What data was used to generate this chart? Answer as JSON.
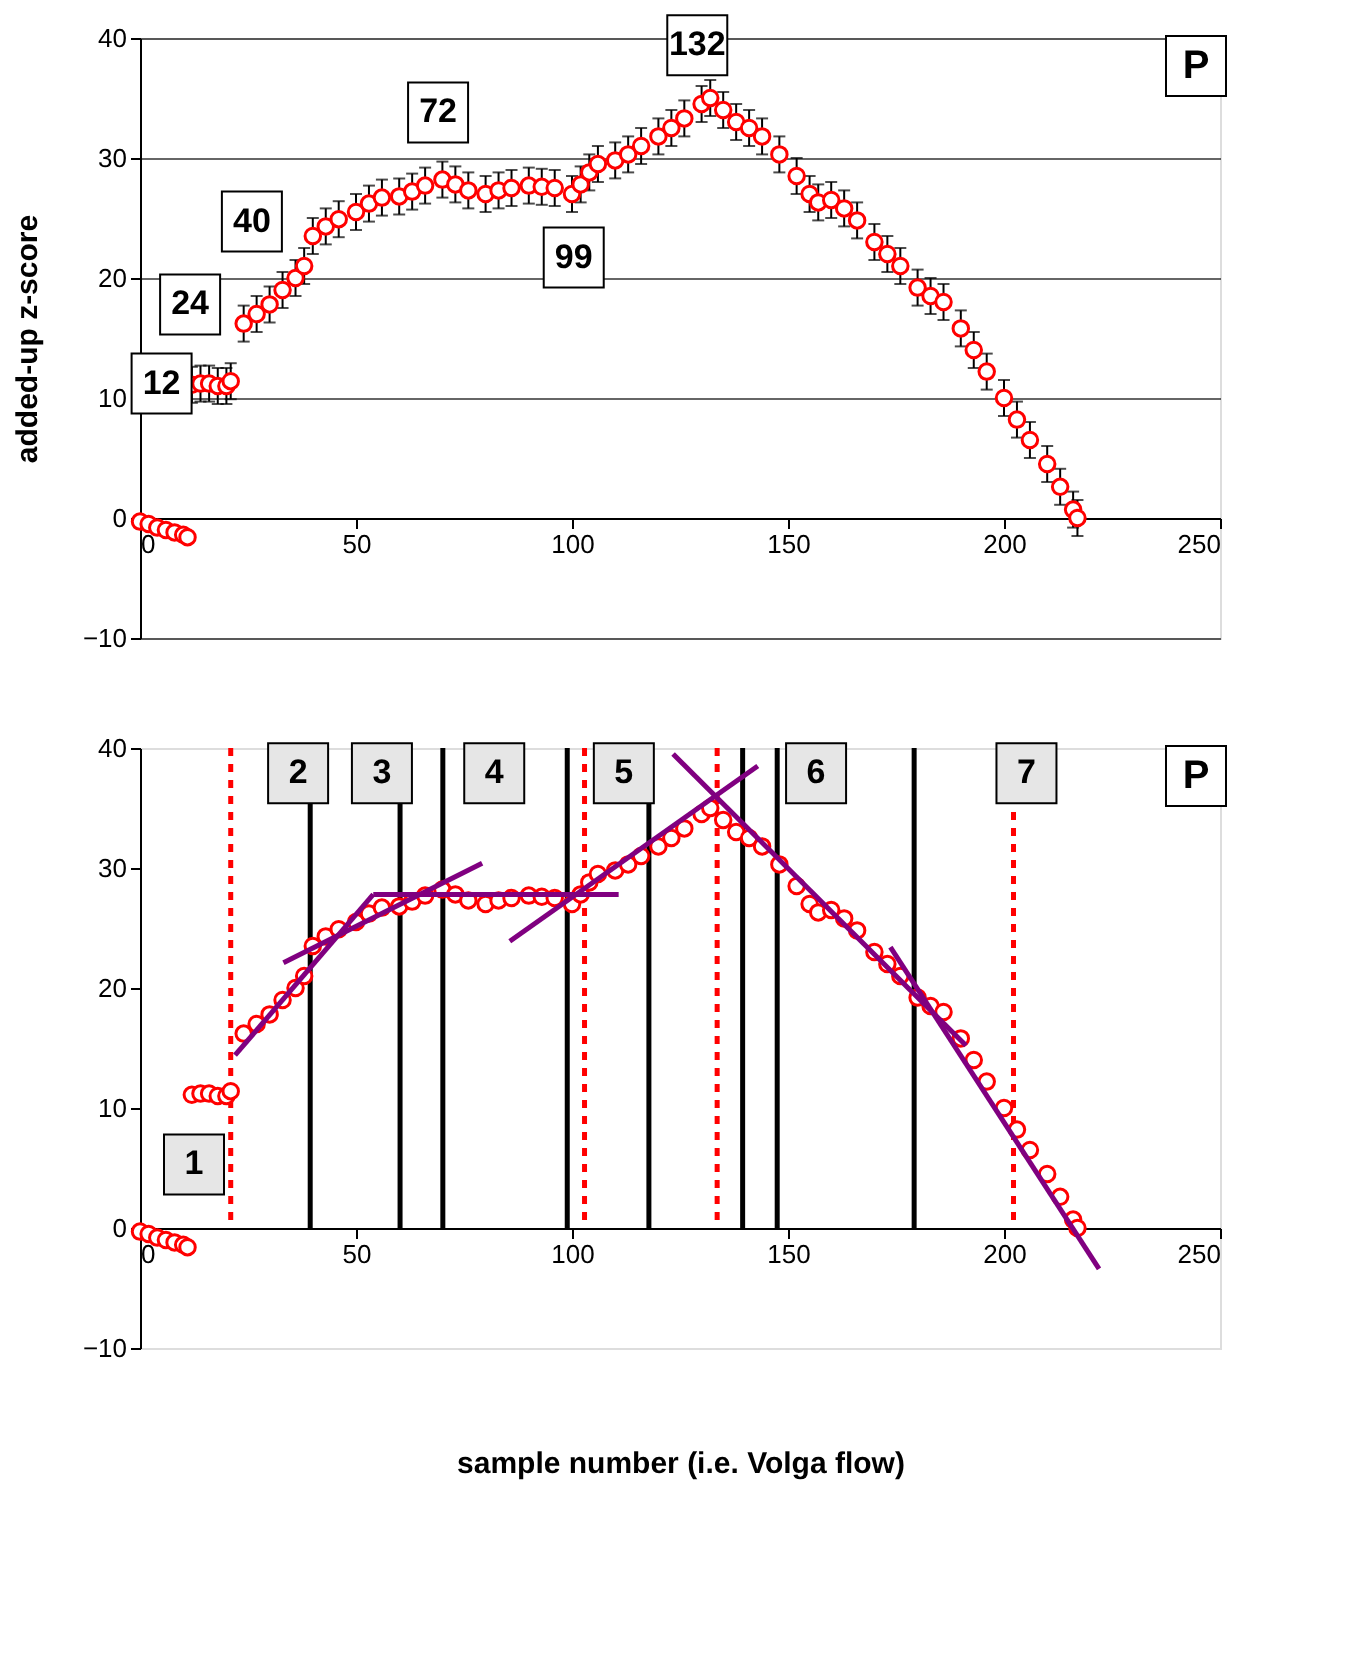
{
  "chart_data": [
    {
      "type": "scatter",
      "ylabel": "added-up z-score",
      "xlim": [
        0,
        250
      ],
      "xticks": [
        0,
        50,
        100,
        150,
        200,
        250
      ],
      "ylim": [
        -10,
        40
      ],
      "yticks": [
        -10,
        0,
        10,
        20,
        30,
        40
      ],
      "grid": "y",
      "series": [
        {
          "color": "#ff0000",
          "marker": "circle",
          "x": [
            0,
            2,
            4,
            6,
            8,
            10,
            11,
            12,
            14,
            16,
            18,
            20,
            21,
            24,
            27,
            30,
            33,
            36,
            38,
            40,
            43,
            46,
            50,
            53,
            56,
            60,
            63,
            66,
            70,
            73,
            76,
            80,
            83,
            86,
            90,
            93,
            96,
            100,
            102,
            104,
            106,
            110,
            113,
            116,
            120,
            123,
            126,
            130,
            132,
            135,
            138,
            141,
            144,
            148,
            152,
            155,
            157,
            160,
            163,
            166,
            170,
            173,
            176,
            180,
            183,
            186,
            190,
            193,
            196,
            200,
            203,
            206,
            210,
            213,
            216,
            217
          ],
          "values": [
            -0.3,
            -0.5,
            -0.8,
            -1.0,
            -1.2,
            -1.4,
            -1.6,
            11.1,
            11.2,
            11.2,
            11.0,
            11.0,
            11.4,
            16.2,
            17.0,
            17.8,
            19.0,
            20.0,
            21.0,
            23.5,
            24.3,
            24.9,
            25.5,
            26.2,
            26.7,
            26.8,
            27.2,
            27.7,
            28.2,
            27.8,
            27.3,
            27.0,
            27.3,
            27.5,
            27.7,
            27.6,
            27.5,
            27.0,
            27.8,
            28.8,
            29.5,
            29.8,
            30.3,
            31.0,
            31.8,
            32.5,
            33.3,
            34.5,
            35.0,
            34.0,
            33.0,
            32.5,
            31.8,
            30.3,
            28.5,
            27.0,
            26.3,
            26.5,
            25.8,
            24.8,
            23.0,
            22.0,
            21.0,
            19.2,
            18.5,
            18.0,
            15.8,
            14.0,
            12.2,
            10.0,
            8.2,
            6.5,
            4.5,
            2.6,
            0.7,
            0.0
          ],
          "errors": [
            null,
            null,
            null,
            null,
            null,
            null,
            null,
            1.5,
            1.5,
            1.5,
            1.5,
            1.5,
            1.5,
            1.5,
            1.5,
            1.5,
            1.5,
            1.5,
            1.5,
            1.5,
            1.5,
            1.5,
            1.5,
            1.5,
            1.5,
            1.5,
            1.5,
            1.5,
            1.5,
            1.5,
            1.5,
            1.5,
            1.5,
            1.5,
            1.5,
            1.5,
            1.5,
            1.5,
            1.5,
            1.5,
            1.5,
            1.5,
            1.5,
            1.5,
            1.5,
            1.5,
            1.5,
            1.5,
            1.5,
            1.5,
            1.5,
            1.5,
            1.5,
            1.5,
            1.5,
            1.5,
            1.5,
            1.5,
            1.5,
            1.5,
            1.5,
            1.5,
            1.5,
            1.5,
            1.5,
            1.5,
            1.5,
            1.5,
            1.5,
            1.5,
            1.5,
            1.5,
            1.5,
            1.5,
            1.5,
            1.5
          ]
        }
      ],
      "annotations": [
        {
          "text": "12",
          "x": 5,
          "y": 11.2
        },
        {
          "text": "24",
          "x": 11.6,
          "y": 17.8
        },
        {
          "text": "40",
          "x": 25.9,
          "y": 24.7
        },
        {
          "text": "72",
          "x": 69,
          "y": 33.8
        },
        {
          "text": "99",
          "x": 100.4,
          "y": 21.7
        },
        {
          "text": "132",
          "x": 129,
          "y": 39.4
        },
        "P"
      ]
    },
    {
      "type": "scatter",
      "xlabel": "sample number (i.e. Volga flow)",
      "xlim": [
        0,
        250
      ],
      "xticks": [
        0,
        50,
        100,
        150,
        200,
        250
      ],
      "ylim": [
        -10,
        40
      ],
      "yticks": [
        -10,
        0,
        10,
        20,
        30,
        40
      ],
      "grid": false,
      "series": [
        {
          "color": "#ff0000",
          "marker": "circle",
          "x": [
            0,
            2,
            4,
            6,
            8,
            10,
            11,
            12,
            14,
            16,
            18,
            20,
            21,
            24,
            27,
            30,
            33,
            36,
            38,
            40,
            43,
            46,
            50,
            53,
            56,
            60,
            63,
            66,
            70,
            73,
            76,
            80,
            83,
            86,
            90,
            93,
            96,
            100,
            102,
            104,
            106,
            110,
            113,
            116,
            120,
            123,
            126,
            130,
            132,
            135,
            138,
            141,
            144,
            148,
            152,
            155,
            157,
            160,
            163,
            166,
            170,
            173,
            176,
            180,
            183,
            186,
            190,
            193,
            196,
            200,
            203,
            206,
            210,
            213,
            216,
            217
          ],
          "values": [
            -0.3,
            -0.5,
            -0.8,
            -1.0,
            -1.2,
            -1.4,
            -1.6,
            11.1,
            11.2,
            11.2,
            11.0,
            11.0,
            11.4,
            16.2,
            17.0,
            17.8,
            19.0,
            20.0,
            21.0,
            23.5,
            24.3,
            24.9,
            25.5,
            26.2,
            26.7,
            26.8,
            27.2,
            27.7,
            28.2,
            27.8,
            27.3,
            27.0,
            27.3,
            27.5,
            27.7,
            27.6,
            27.5,
            27.0,
            27.8,
            28.8,
            29.5,
            29.8,
            30.3,
            31.0,
            31.8,
            32.5,
            33.3,
            34.5,
            35.0,
            34.0,
            33.0,
            32.5,
            31.8,
            30.3,
            28.5,
            27.0,
            26.3,
            26.5,
            25.8,
            24.8,
            23.0,
            22.0,
            21.0,
            19.2,
            18.5,
            18.0,
            15.8,
            14.0,
            12.2,
            10.0,
            8.2,
            6.5,
            4.5,
            2.6,
            0.7,
            0.0
          ]
        },
        {
          "type": "line",
          "color": "#800080",
          "x": [
            22,
            54
          ],
          "values": [
            14.4,
            27.8
          ]
        },
        {
          "type": "line",
          "color": "#800080",
          "x": [
            33.2,
            79.2
          ],
          "values": [
            22.1,
            30.4
          ]
        },
        {
          "type": "line",
          "color": "#800080",
          "x": [
            54,
            110.8
          ],
          "values": [
            27.8,
            27.8
          ]
        },
        {
          "type": "line",
          "color": "#800080",
          "x": [
            85.6,
            143
          ],
          "values": [
            23.9,
            38.5
          ]
        },
        {
          "type": "line",
          "color": "#800080",
          "x": [
            123.4,
            191.2
          ],
          "values": [
            39.5,
            15.2
          ]
        },
        {
          "type": "line",
          "color": "#800080",
          "x": [
            173.7,
            222
          ],
          "values": [
            23.4,
            -3.4
          ]
        }
      ],
      "ref_lines": [
        {
          "axis": "x",
          "value": 39.4,
          "color": "#000000",
          "line_style": "solid"
        },
        {
          "axis": "x",
          "value": 60.2,
          "color": "#000000",
          "line_style": "solid"
        },
        {
          "axis": "x",
          "value": 70.1,
          "color": "#000000",
          "line_style": "solid"
        },
        {
          "axis": "x",
          "value": 98.9,
          "color": "#000000",
          "line_style": "solid"
        },
        {
          "axis": "x",
          "value": 117.8,
          "color": "#000000",
          "line_style": "solid"
        },
        {
          "axis": "x",
          "value": 139.5,
          "color": "#000000",
          "line_style": "solid"
        },
        {
          "axis": "x",
          "value": 147.5,
          "color": "#000000",
          "line_style": "solid"
        },
        {
          "axis": "x",
          "value": 179.2,
          "color": "#000000",
          "line_style": "solid"
        },
        {
          "axis": "x",
          "value": 21,
          "color": "#ff0000",
          "line_style": "dotted"
        },
        {
          "axis": "x",
          "value": 102.9,
          "color": "#ff0000",
          "line_style": "dotted"
        },
        {
          "axis": "x",
          "value": 133.6,
          "color": "#ff0000",
          "line_style": "dotted"
        },
        {
          "axis": "x",
          "value": 202.2,
          "color": "#ff0000",
          "line_style": "dotted"
        }
      ],
      "annotations": [
        {
          "text": "1",
          "x": 12.5,
          "y": 5.3
        },
        {
          "text": "2",
          "x": 36.6,
          "y": 37.9
        },
        {
          "text": "3",
          "x": 56,
          "y": 37.9
        },
        {
          "text": "4",
          "x": 82,
          "y": 37.9
        },
        {
          "text": "5",
          "x": 112,
          "y": 37.9
        },
        {
          "text": "6",
          "x": 156.5,
          "y": 37.9
        },
        {
          "text": "7",
          "x": 205.2,
          "y": 37.9
        },
        "P"
      ]
    }
  ]
}
